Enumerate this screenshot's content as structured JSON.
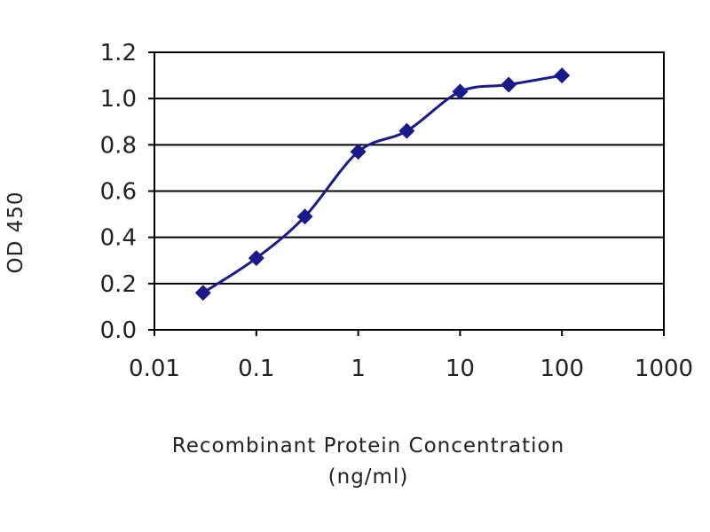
{
  "chart_data": {
    "type": "line",
    "title": "",
    "xlabel_line1": "Recombinant Protein Concentration",
    "xlabel_line2": "(ng/ml)",
    "ylabel": "OD 450",
    "x_scale": "log",
    "xlim": [
      0.01,
      1000
    ],
    "ylim": [
      0.0,
      1.2
    ],
    "x_ticks": [
      0.01,
      0.1,
      1,
      10,
      100,
      1000
    ],
    "x_tick_labels": [
      "0.01",
      "0.1",
      "1",
      "10",
      "100",
      "1000"
    ],
    "y_ticks": [
      0.0,
      0.2,
      0.4,
      0.6,
      0.8,
      1.0,
      1.2
    ],
    "y_tick_labels": [
      "0.0",
      "0.2",
      "0.4",
      "0.6",
      "0.8",
      "1.0",
      "1.2"
    ],
    "grid": "horizontal",
    "legend": "none",
    "series": [
      {
        "x": [
          0.03,
          0.1,
          0.3,
          1,
          3,
          10,
          30,
          100
        ],
        "y": [
          0.16,
          0.31,
          0.49,
          0.77,
          0.86,
          1.03,
          1.06,
          1.1
        ]
      }
    ],
    "colors": {
      "line": "#1a1a8c",
      "marker": "#1a1a8c",
      "grid": "#000000",
      "frame": "#000000"
    }
  }
}
